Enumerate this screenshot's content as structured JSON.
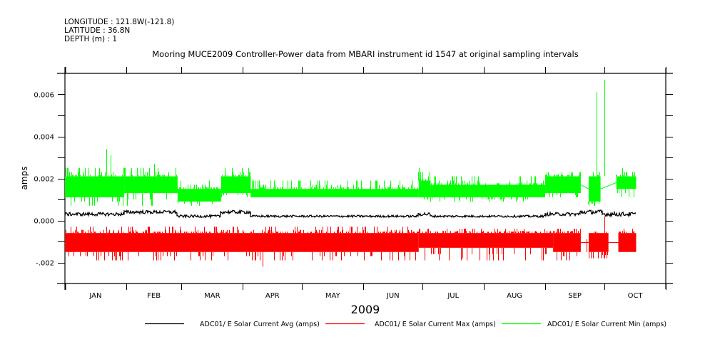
{
  "header": {
    "longitude": "LONGITUDE : 121.8W(-121.8)",
    "latitude": "LATITUDE : 36.8N",
    "depth": "DEPTH (m) : 1"
  },
  "chart_data": {
    "type": "line",
    "title": "Mooring MUCE2009 Controller-Power data from MBARI instrument id 1547 at original sampling intervals",
    "xlabel": "2009",
    "ylabel": "amps",
    "xlim_day_of_year": [
      1,
      305
    ],
    "ylim": [
      -0.003,
      0.007
    ],
    "x_tick_labels": [
      "JAN",
      "FEB",
      "MAR",
      "APR",
      "MAY",
      "JUN",
      "JUL",
      "AUG",
      "SEP",
      "OCT"
    ],
    "x_tick_days": [
      1,
      32,
      60,
      91,
      121,
      152,
      182,
      213,
      244,
      274,
      305
    ],
    "y_tick_labels": [
      "-.002",
      "0.000",
      "0.002",
      "0.004",
      "0.006"
    ],
    "y_tick_values": [
      -0.002,
      0.0,
      0.002,
      0.004,
      0.006
    ],
    "y_minor_ticks": [
      -0.003,
      -0.001,
      0.001,
      0.003,
      0.005,
      0.007
    ],
    "grid": false,
    "legend_position": "bottom",
    "series": [
      {
        "name": "ADC01/ E Solar Current Avg (amps)",
        "color": "#000000",
        "segments": [
          {
            "start": 1,
            "end": 31,
            "level": 0.0003,
            "noise": 8e-05
          },
          {
            "start": 31,
            "end": 58,
            "level": 0.0004,
            "noise": 8e-05
          },
          {
            "start": 58,
            "end": 80,
            "level": 0.0002,
            "noise": 6e-05
          },
          {
            "start": 80,
            "end": 95,
            "level": 0.0004,
            "noise": 8e-05
          },
          {
            "start": 95,
            "end": 180,
            "level": 0.0002,
            "noise": 5e-05
          },
          {
            "start": 180,
            "end": 186,
            "level": 0.0003,
            "noise": 8e-05
          },
          {
            "start": 186,
            "end": 244,
            "level": 0.0002,
            "noise": 5e-05
          },
          {
            "start": 244,
            "end": 262,
            "level": 0.0003,
            "noise": 8e-05
          },
          {
            "start": 262,
            "end": 273,
            "level": 0.0004,
            "noise": 0.0001
          },
          {
            "start": 273,
            "end": 290,
            "level": 0.0003,
            "noise": 0.0001
          }
        ]
      },
      {
        "name": "ADC01/ E Solar Current Max (amps)",
        "color": "#ff0000",
        "segments": [
          {
            "start": 1,
            "end": 180,
            "low": -0.0015,
            "high": -0.0006,
            "spike_low": -0.0019,
            "spike_high": -0.0003
          },
          {
            "start": 180,
            "end": 248,
            "low": -0.0013,
            "high": -0.0006,
            "spike_low": -0.0019,
            "spike_high": -0.0004
          },
          {
            "start": 248,
            "end": 262,
            "low": -0.0015,
            "high": -0.0006,
            "spike_low": -0.0019,
            "spike_high": -0.0004
          },
          {
            "start": 266,
            "end": 276,
            "low": -0.0015,
            "high": -0.0006,
            "spike_low": -0.0018,
            "spike_high": -0.0006
          },
          {
            "start": 281,
            "end": 290,
            "low": -0.0015,
            "high": -0.0006,
            "spike_low": -0.0015,
            "spike_high": -0.0004
          }
        ],
        "spikes": [
          [
            101,
            -0.0022
          ],
          [
            60,
            -0.0009
          ],
          [
            202,
            -0.0018
          ],
          [
            265,
            -0.0009
          ],
          [
            274,
            0.0002
          ]
        ]
      },
      {
        "name": "ADC01/ E Solar Current Min (amps)",
        "color": "#00ff00",
        "segments": [
          {
            "start": 1,
            "end": 31,
            "low": 0.0011,
            "high": 0.0021,
            "spike_low": 0.0007,
            "spike_high": 0.0025
          },
          {
            "start": 31,
            "end": 58,
            "low": 0.0013,
            "high": 0.0021,
            "spike_low": 0.0007,
            "spike_high": 0.0025
          },
          {
            "start": 58,
            "end": 80,
            "low": 0.0009,
            "high": 0.0015,
            "spike_low": 0.0007,
            "spike_high": 0.0019
          },
          {
            "start": 80,
            "end": 95,
            "low": 0.0013,
            "high": 0.0021,
            "spike_low": 0.0011,
            "spike_high": 0.0025
          },
          {
            "start": 95,
            "end": 180,
            "low": 0.0011,
            "high": 0.0015,
            "spike_low": 0.0011,
            "spike_high": 0.0019
          },
          {
            "start": 180,
            "end": 186,
            "low": 0.0011,
            "high": 0.0019,
            "spike_low": 0.0009,
            "spike_high": 0.0023
          },
          {
            "start": 186,
            "end": 244,
            "low": 0.0011,
            "high": 0.0017,
            "spike_low": 0.0009,
            "spike_high": 0.0021
          },
          {
            "start": 244,
            "end": 262,
            "low": 0.0013,
            "high": 0.0021,
            "spike_low": 0.0011,
            "spike_high": 0.0023
          },
          {
            "start": 266,
            "end": 272,
            "low": 0.0009,
            "high": 0.0021,
            "spike_low": 0.0007,
            "spike_high": 0.0025
          },
          {
            "start": 280,
            "end": 290,
            "low": 0.0015,
            "high": 0.0021,
            "spike_low": 0.0011,
            "spike_high": 0.0025
          }
        ],
        "spikes": [
          [
            22,
            0.0034
          ],
          [
            24,
            0.0031
          ],
          [
            46,
            0.0027
          ],
          [
            180,
            0.0025
          ],
          [
            270,
            0.0061
          ],
          [
            274,
            0.0067
          ]
        ]
      }
    ]
  }
}
